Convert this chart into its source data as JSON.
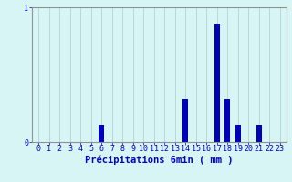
{
  "title": "",
  "xlabel": "Précipitations 6min ( mm )",
  "categories": [
    0,
    1,
    2,
    3,
    4,
    5,
    6,
    7,
    8,
    9,
    10,
    11,
    12,
    13,
    14,
    15,
    16,
    17,
    18,
    19,
    20,
    21,
    22,
    23
  ],
  "values": [
    0,
    0,
    0,
    0,
    0,
    0,
    0.13,
    0,
    0,
    0,
    0,
    0,
    0,
    0,
    0.32,
    0,
    0,
    0.88,
    0.32,
    0.13,
    0,
    0.13,
    0,
    0
  ],
  "ylim": [
    0,
    1.0
  ],
  "yticks": [
    0,
    1
  ],
  "bar_color": "#0000bb",
  "bg_color": "#d8f5f5",
  "grid_color": "#b8d8d8",
  "axis_color": "#909090",
  "text_color": "#0000cc",
  "xlabel_fontsize": 7.5,
  "tick_fontsize": 6.0
}
